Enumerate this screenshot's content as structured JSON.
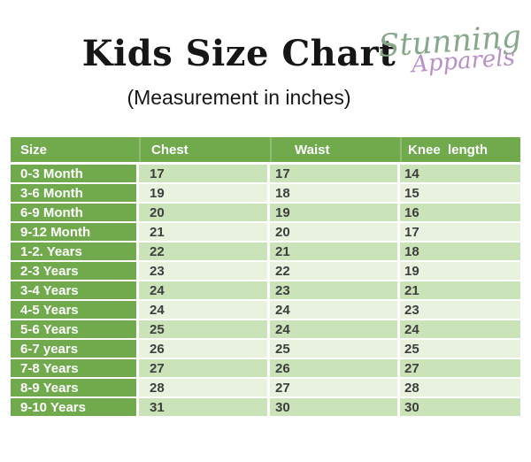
{
  "page": {
    "title": "Kids Size Chart",
    "subtitle": "(Measurement in inches)"
  },
  "brand": {
    "line1": "Stunning",
    "line2": "Apparels"
  },
  "colors": {
    "header_green": "#71aa4c",
    "band_a": "#cbe3b8",
    "band_b": "#e8f2df",
    "cell_text": "#3e3e3e",
    "title_color": "#161616",
    "logo_green": "#87a88b",
    "logo_purple": "#b790c6"
  },
  "table": {
    "columns": [
      "Size",
      "Chest",
      "Waist",
      "Knee  length"
    ],
    "rows": [
      [
        "0-3 Month",
        "17",
        "17",
        "14"
      ],
      [
        "3-6 Month",
        "19",
        "18",
        "15"
      ],
      [
        "6-9 Month",
        "20",
        "19",
        "16"
      ],
      [
        "9-12 Month",
        "21",
        "20",
        "17"
      ],
      [
        "1-2. Years",
        "22",
        "21",
        "18"
      ],
      [
        "2-3 Years",
        "23",
        "22",
        "19"
      ],
      [
        "3-4 Years",
        "24",
        "23",
        "21"
      ],
      [
        "4-5 Years",
        "24",
        "24",
        "23"
      ],
      [
        "5-6 Years",
        "25",
        "24",
        "24"
      ],
      [
        "6-7 years",
        "26",
        "25",
        "25"
      ],
      [
        "7-8 Years",
        "27",
        "26",
        "27"
      ],
      [
        "8-9 Years",
        "28",
        "27",
        "28"
      ],
      [
        "9-10 Years",
        "31",
        "30",
        "30"
      ]
    ]
  }
}
